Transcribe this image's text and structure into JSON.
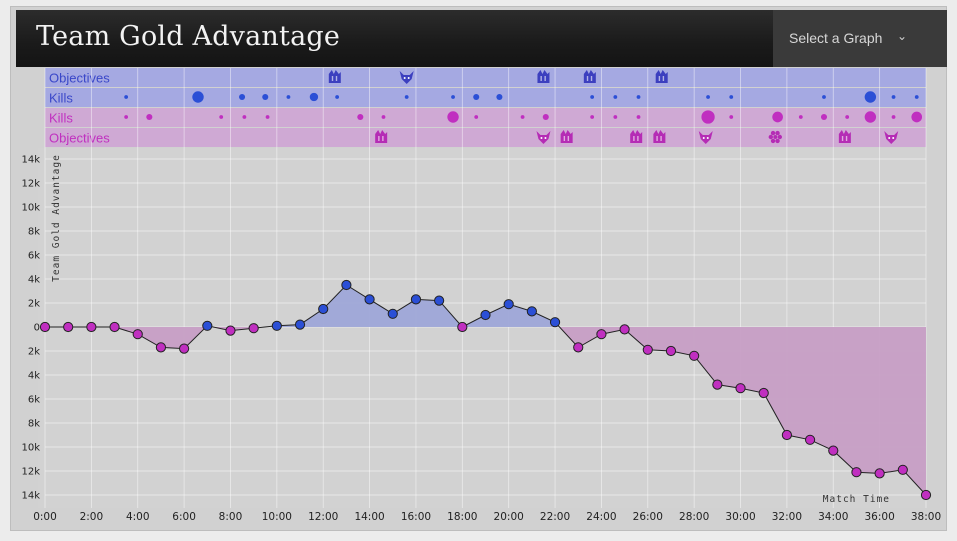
{
  "header": {
    "title": "Team Gold Advantage",
    "select_label": "Select a Graph",
    "chevron_icon": "chevron-down-icon"
  },
  "colors": {
    "blue": "#2b4fd6",
    "purple": "#c02fc0",
    "blue_fill": "#9ea7d8",
    "purple_fill": "#c79ec5",
    "blue_lane": "#a5a9e2",
    "purple_lane": "#cfa9d4",
    "line": "#222222"
  },
  "lanes": {
    "blue_objectives_label": "Objectives",
    "blue_kills_label": "Kills",
    "purple_kills_label": "Kills",
    "purple_objectives_label": "Objectives"
  },
  "chart_data": {
    "type": "area",
    "title": "Team Gold Advantage",
    "ylabel": "Team Gold Advantage",
    "xlabel": "Match Time",
    "x_ticks": [
      "0:00",
      "2:00",
      "4:00",
      "6:00",
      "8:00",
      "10:00",
      "12:00",
      "14:00",
      "16:00",
      "18:00",
      "20:00",
      "22:00",
      "24:00",
      "26:00",
      "28:00",
      "30:00",
      "32:00",
      "34:00",
      "36:00",
      "38:00"
    ],
    "y_ticks": [
      "14k",
      "12k",
      "10k",
      "8k",
      "6k",
      "4k",
      "2k",
      "0",
      "2k",
      "4k",
      "6k",
      "8k",
      "10k",
      "12k",
      "14k"
    ],
    "ylim": [
      -14000,
      14000
    ],
    "xlim_minutes": [
      0,
      38
    ],
    "minutes": [
      0,
      1,
      2,
      3,
      4,
      5,
      6,
      7,
      8,
      9,
      10,
      11,
      12,
      13,
      14,
      15,
      16,
      17,
      18,
      19,
      20,
      21,
      22,
      23,
      24,
      25,
      26,
      27,
      28,
      29,
      30,
      31,
      32,
      33,
      34,
      35,
      36,
      37,
      38
    ],
    "values": [
      0,
      0,
      0,
      0,
      -600,
      -1700,
      -1800,
      100,
      -300,
      -100,
      100,
      200,
      1500,
      3500,
      2300,
      1100,
      2300,
      2200,
      0,
      1000,
      1900,
      1300,
      400,
      -1700,
      -600,
      -200,
      -1900,
      -2000,
      -2400,
      -4800,
      -5100,
      -5500,
      -9000,
      -9400,
      -10300,
      -12100,
      -12200,
      -11900,
      -14000
    ],
    "blue_objectives": [
      {
        "minute": 12.5,
        "type": "baron"
      },
      {
        "minute": 15.6,
        "type": "dragon"
      },
      {
        "minute": 21.5,
        "type": "baron"
      },
      {
        "minute": 23.5,
        "type": "baron"
      },
      {
        "minute": 26.6,
        "type": "baron"
      }
    ],
    "blue_kills": [
      {
        "minute": 3.5,
        "size": 1
      },
      {
        "minute": 6.6,
        "size": 3
      },
      {
        "minute": 8.5,
        "size": 1.6
      },
      {
        "minute": 9.5,
        "size": 1.6
      },
      {
        "minute": 10.5,
        "size": 1
      },
      {
        "minute": 11.6,
        "size": 2.2
      },
      {
        "minute": 12.6,
        "size": 1
      },
      {
        "minute": 15.6,
        "size": 1
      },
      {
        "minute": 17.6,
        "size": 1
      },
      {
        "minute": 18.6,
        "size": 1.6
      },
      {
        "minute": 19.6,
        "size": 1.6
      },
      {
        "minute": 23.6,
        "size": 1
      },
      {
        "minute": 24.6,
        "size": 1
      },
      {
        "minute": 25.6,
        "size": 1
      },
      {
        "minute": 28.6,
        "size": 1
      },
      {
        "minute": 29.6,
        "size": 1
      },
      {
        "minute": 33.6,
        "size": 1
      },
      {
        "minute": 35.6,
        "size": 3
      },
      {
        "minute": 36.6,
        "size": 1
      },
      {
        "minute": 37.6,
        "size": 1
      }
    ],
    "purple_kills": [
      {
        "minute": 3.5,
        "size": 1
      },
      {
        "minute": 4.5,
        "size": 1.6
      },
      {
        "minute": 7.6,
        "size": 1
      },
      {
        "minute": 8.6,
        "size": 1
      },
      {
        "minute": 9.6,
        "size": 1
      },
      {
        "minute": 13.6,
        "size": 1.6
      },
      {
        "minute": 14.6,
        "size": 1
      },
      {
        "minute": 17.6,
        "size": 3
      },
      {
        "minute": 18.6,
        "size": 1
      },
      {
        "minute": 20.6,
        "size": 1
      },
      {
        "minute": 21.6,
        "size": 1.6
      },
      {
        "minute": 23.6,
        "size": 1
      },
      {
        "minute": 24.6,
        "size": 1
      },
      {
        "minute": 25.6,
        "size": 1
      },
      {
        "minute": 28.6,
        "size": 3.5
      },
      {
        "minute": 29.6,
        "size": 1
      },
      {
        "minute": 31.6,
        "size": 2.8
      },
      {
        "minute": 32.6,
        "size": 1
      },
      {
        "minute": 33.6,
        "size": 1.6
      },
      {
        "minute": 34.6,
        "size": 1
      },
      {
        "minute": 35.6,
        "size": 3
      },
      {
        "minute": 36.6,
        "size": 1
      },
      {
        "minute": 37.6,
        "size": 2.8
      }
    ],
    "purple_objectives": [
      {
        "minute": 14.5,
        "type": "baron"
      },
      {
        "minute": 21.5,
        "type": "dragon"
      },
      {
        "minute": 22.5,
        "type": "baron"
      },
      {
        "minute": 25.5,
        "type": "baron"
      },
      {
        "minute": 26.5,
        "type": "baron"
      },
      {
        "minute": 28.5,
        "type": "dragon"
      },
      {
        "minute": 31.5,
        "type": "flower"
      },
      {
        "minute": 34.5,
        "type": "baron"
      },
      {
        "minute": 36.5,
        "type": "dragon"
      }
    ]
  }
}
